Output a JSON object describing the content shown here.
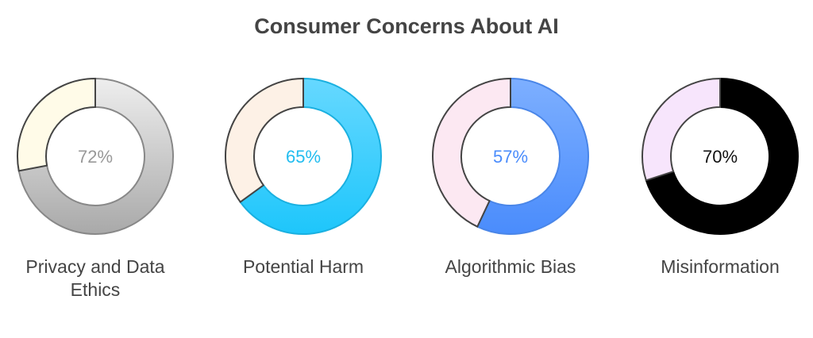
{
  "chart_data": {
    "type": "pie",
    "variant": "donut",
    "title": "Consumer Concerns About AI",
    "categories": [
      "Privacy and Data Ethics",
      "Potential Harm",
      "Algorithmic Bias",
      "Misinformation"
    ],
    "values": [
      72,
      65,
      57,
      70
    ],
    "value_labels": [
      "72%",
      "65%",
      "57%",
      "70%"
    ],
    "unit": "%",
    "colors": [
      {
        "fill_top": "#eeeeee",
        "fill_bottom": "#a9a9a9",
        "stroke": "#888888",
        "remainder": "#fffbe8",
        "text": "#999999"
      },
      {
        "fill_top": "#66d8ff",
        "fill_bottom": "#1ec6fb",
        "stroke": "#1ab0e0",
        "remainder": "#fdf1e6",
        "text": "#22bdf0"
      },
      {
        "fill_top": "#7dafff",
        "fill_bottom": "#4a8cfc",
        "stroke": "#4a86e8",
        "remainder": "#fce8f2",
        "text": "#4a8cfc"
      },
      {
        "fill_top": "#000000",
        "fill_bottom": "#000000",
        "stroke": "#000000",
        "remainder": "#f7e5fc",
        "text": "#111111"
      }
    ]
  }
}
